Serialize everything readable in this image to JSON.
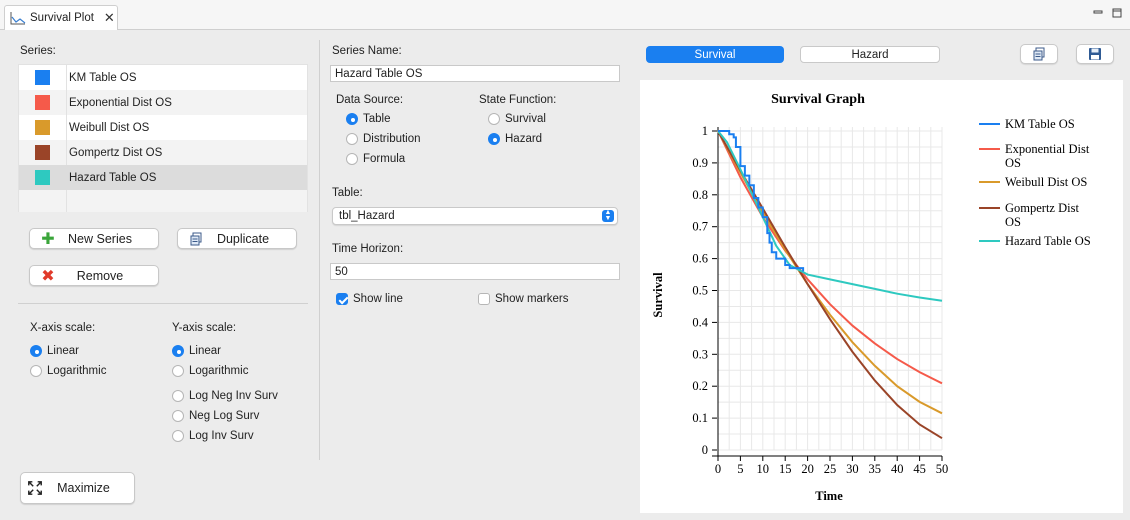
{
  "tab": {
    "title": "Survival Plot"
  },
  "series_panel": {
    "label": "Series:",
    "items": [
      {
        "name": "KM Table OS",
        "color": "#1a7ff0"
      },
      {
        "name": "Exponential Dist OS",
        "color": "#f55a4a"
      },
      {
        "name": "Weibull Dist OS",
        "color": "#d99a2b"
      },
      {
        "name": "Gompertz Dist OS",
        "color": "#9a4428"
      },
      {
        "name": "Hazard Table OS",
        "color": "#2ec9c0"
      }
    ],
    "selected_index": 4
  },
  "buttons": {
    "new_series": "New Series",
    "duplicate": "Duplicate",
    "remove": "Remove",
    "maximize": "Maximize"
  },
  "x_axis_scale": {
    "label": "X-axis scale:",
    "options": [
      "Linear",
      "Logarithmic"
    ],
    "selected": "Linear"
  },
  "y_axis_scale": {
    "label": "Y-axis scale:",
    "options": [
      "Linear",
      "Logarithmic",
      "Log Neg Inv Surv",
      "Neg Log Surv",
      "Log Inv Surv"
    ],
    "selected": "Linear"
  },
  "editor": {
    "series_name_label": "Series Name:",
    "series_name_value": "Hazard Table OS",
    "data_source_label": "Data Source:",
    "data_source_options": [
      "Table",
      "Distribution",
      "Formula"
    ],
    "data_source_selected": "Table",
    "state_function_label": "State Function:",
    "state_function_options": [
      "Survival",
      "Hazard"
    ],
    "state_function_selected": "Hazard",
    "table_label": "Table:",
    "table_value": "tbl_Hazard",
    "time_horizon_label": "Time Horizon:",
    "time_horizon_value": "50",
    "show_line_label": "Show line",
    "show_line_checked": true,
    "show_markers_label": "Show markers",
    "show_markers_checked": false
  },
  "view_toggle": {
    "survival": "Survival",
    "hazard": "Hazard",
    "selected": "Survival"
  },
  "chart_data": {
    "type": "line",
    "title": "Survival Graph",
    "xlabel": "Time",
    "ylabel": "Survival",
    "xlim": [
      0,
      50
    ],
    "ylim": [
      0,
      1
    ],
    "xticks": [
      0,
      5,
      10,
      15,
      20,
      25,
      30,
      35,
      40,
      45,
      50
    ],
    "yticks": [
      0,
      0.1,
      0.2,
      0.3,
      0.4,
      0.5,
      0.6,
      0.7,
      0.8,
      0.9,
      1
    ],
    "grid": true,
    "legend_position": "right",
    "series": [
      {
        "name": "KM Table OS",
        "color": "#1a7ff0",
        "step": true,
        "x": [
          0,
          2,
          2.5,
          3.5,
          4,
          5,
          6,
          7,
          8,
          9,
          10,
          11,
          11.5,
          12,
          13,
          14,
          15,
          16,
          18,
          19
        ],
        "y": [
          1,
          1,
          0.99,
          0.98,
          0.95,
          0.89,
          0.86,
          0.83,
          0.79,
          0.76,
          0.73,
          0.68,
          0.65,
          0.62,
          0.6,
          0.6,
          0.58,
          0.57,
          0.57,
          0.56
        ]
      },
      {
        "name": "Exponential Dist OS",
        "color": "#f55a4a",
        "x": [
          0,
          5,
          10,
          15,
          20,
          25,
          30,
          35,
          40,
          45,
          50
        ],
        "y": [
          1,
          0.855,
          0.73,
          0.625,
          0.535,
          0.457,
          0.39,
          0.334,
          0.285,
          0.244,
          0.209
        ]
      },
      {
        "name": "Weibull Dist OS",
        "color": "#d99a2b",
        "x": [
          0,
          5,
          10,
          15,
          20,
          25,
          30,
          35,
          40,
          45,
          50
        ],
        "y": [
          1,
          0.87,
          0.745,
          0.628,
          0.52,
          0.424,
          0.338,
          0.264,
          0.2,
          0.151,
          0.115
        ]
      },
      {
        "name": "Gompertz Dist OS",
        "color": "#9a4428",
        "x": [
          0,
          5,
          10,
          15,
          20,
          25,
          30,
          35,
          40,
          45,
          50
        ],
        "y": [
          1,
          0.876,
          0.757,
          0.636,
          0.52,
          0.41,
          0.308,
          0.218,
          0.141,
          0.08,
          0.037
        ]
      },
      {
        "name": "Hazard Table OS",
        "color": "#2ec9c0",
        "x": [
          0,
          2,
          5,
          8,
          10,
          13,
          16,
          18,
          20,
          25,
          30,
          35,
          40,
          45,
          50
        ],
        "y": [
          1,
          0.965,
          0.88,
          0.79,
          0.73,
          0.64,
          0.58,
          0.565,
          0.55,
          0.535,
          0.52,
          0.505,
          0.49,
          0.478,
          0.468
        ]
      }
    ]
  }
}
